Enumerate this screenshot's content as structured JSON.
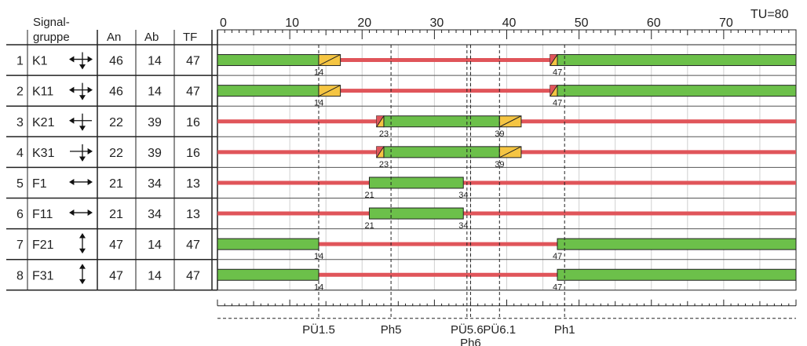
{
  "cycle_label": "TU=80",
  "header": {
    "group_line1": "Signal-",
    "group_line2": "gruppe",
    "an": "An",
    "ab": "Ab",
    "tf": "TF"
  },
  "axis_ticks": [
    "0",
    "10",
    "20",
    "30",
    "40",
    "50",
    "60",
    "70"
  ],
  "rows": [
    {
      "num": "1",
      "name": "K1",
      "arrow": "cross-arrows-icon",
      "an": "46",
      "ab": "14",
      "tf": "47"
    },
    {
      "num": "2",
      "name": "K11",
      "arrow": "cross-arrows-icon",
      "an": "46",
      "ab": "14",
      "tf": "47"
    },
    {
      "num": "3",
      "name": "K21",
      "arrow": "cross-arrows-left-icon",
      "an": "22",
      "ab": "39",
      "tf": "16"
    },
    {
      "num": "4",
      "name": "K31",
      "arrow": "cross-arrows-right-icon",
      "an": "22",
      "ab": "39",
      "tf": "16"
    },
    {
      "num": "5",
      "name": "F1",
      "arrow": "horizontal-arrow-icon",
      "an": "21",
      "ab": "34",
      "tf": "13"
    },
    {
      "num": "6",
      "name": "F11",
      "arrow": "horizontal-arrow-icon",
      "an": "21",
      "ab": "34",
      "tf": "13"
    },
    {
      "num": "7",
      "name": "F21",
      "arrow": "vertical-arrow-icon",
      "an": "47",
      "ab": "14",
      "tf": "47"
    },
    {
      "num": "8",
      "name": "F31",
      "arrow": "vertical-arrow-icon",
      "an": "47",
      "ab": "14",
      "tf": "47"
    }
  ],
  "chart_data": {
    "type": "signal_timing",
    "cycle": 80,
    "xlim": [
      0,
      80
    ],
    "colors": {
      "green": "#6cc04a",
      "red": "#e0555a",
      "amber": "#f5c542",
      "redamber": "#e0555a"
    },
    "signals": [
      {
        "name": "K1",
        "green": [
          [
            0,
            14
          ],
          [
            47,
            80
          ]
        ],
        "amber": [
          [
            14,
            17
          ]
        ],
        "redamber": [
          [
            46,
            47
          ]
        ],
        "labels": [
          {
            "t": 14,
            "text": "14"
          },
          {
            "t": 47,
            "text": "47"
          }
        ]
      },
      {
        "name": "K11",
        "green": [
          [
            0,
            14
          ],
          [
            47,
            80
          ]
        ],
        "amber": [
          [
            14,
            17
          ]
        ],
        "redamber": [
          [
            46,
            47
          ]
        ],
        "labels": [
          {
            "t": 14,
            "text": "14"
          },
          {
            "t": 47,
            "text": "47"
          }
        ]
      },
      {
        "name": "K21",
        "green": [
          [
            23,
            39
          ]
        ],
        "amber": [
          [
            39,
            42
          ]
        ],
        "redamber": [
          [
            22,
            23
          ]
        ],
        "labels": [
          {
            "t": 23,
            "text": "23"
          },
          {
            "t": 39,
            "text": "39"
          }
        ]
      },
      {
        "name": "K31",
        "green": [
          [
            23,
            39
          ]
        ],
        "amber": [
          [
            39,
            42
          ]
        ],
        "redamber": [
          [
            22,
            23
          ]
        ],
        "labels": [
          {
            "t": 23,
            "text": "23"
          },
          {
            "t": 39,
            "text": "39"
          }
        ]
      },
      {
        "name": "F1",
        "green": [
          [
            21,
            34
          ]
        ],
        "amber": [],
        "redamber": [],
        "labels": [
          {
            "t": 21,
            "text": "21"
          },
          {
            "t": 34,
            "text": "34"
          }
        ]
      },
      {
        "name": "F11",
        "green": [
          [
            21,
            34
          ]
        ],
        "amber": [],
        "redamber": [],
        "labels": [
          {
            "t": 21,
            "text": "21"
          },
          {
            "t": 34,
            "text": "34"
          }
        ]
      },
      {
        "name": "F21",
        "green": [
          [
            0,
            14
          ],
          [
            47,
            80
          ]
        ],
        "amber": [],
        "redamber": [],
        "labels": [
          {
            "t": 14,
            "text": "14"
          },
          {
            "t": 47,
            "text": "47"
          }
        ]
      },
      {
        "name": "F31",
        "green": [
          [
            0,
            14
          ],
          [
            47,
            80
          ]
        ],
        "amber": [],
        "redamber": [],
        "labels": [
          {
            "t": 14,
            "text": "14"
          },
          {
            "t": 47,
            "text": "47"
          }
        ]
      }
    ],
    "phase_markers": [
      {
        "t": 14,
        "label": "PÜ1.5"
      },
      {
        "t": 24,
        "label": "Ph5"
      },
      {
        "t": 34.5,
        "label": "PÜ5.6"
      },
      {
        "t": 35,
        "label": "Ph6"
      },
      {
        "t": 39,
        "label": "PÜ6.1"
      },
      {
        "t": 48,
        "label": "Ph1"
      }
    ]
  }
}
